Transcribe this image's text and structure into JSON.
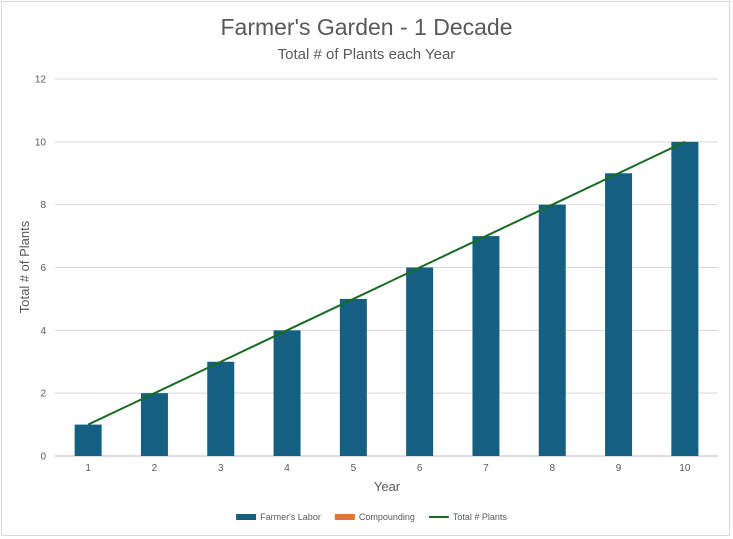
{
  "chart_data": {
    "type": "bar",
    "title": "Farmer's Garden - 1 Decade",
    "subtitle": "Total # of Plants each Year",
    "xlabel": "Year",
    "ylabel": "Total # of Plants",
    "categories": [
      "1",
      "2",
      "3",
      "4",
      "5",
      "6",
      "7",
      "8",
      "9",
      "10"
    ],
    "ylim": [
      0,
      12
    ],
    "yticks": [
      0,
      2,
      4,
      6,
      8,
      10,
      12
    ],
    "grid": true,
    "legend_position": "bottom",
    "series": [
      {
        "name": "Farmer's Labor",
        "type": "bar",
        "color": "#156082",
        "values": [
          1,
          2,
          3,
          4,
          5,
          6,
          7,
          8,
          9,
          10
        ]
      },
      {
        "name": "Compounding",
        "type": "bar",
        "color": "#e97132",
        "values": [
          0,
          0,
          0,
          0,
          0,
          0,
          0,
          0,
          0,
          0
        ]
      },
      {
        "name": "Total # Plants",
        "type": "line",
        "color": "#196b24",
        "values": [
          1,
          2,
          3,
          4,
          5,
          6,
          7,
          8,
          9,
          10
        ]
      }
    ]
  }
}
